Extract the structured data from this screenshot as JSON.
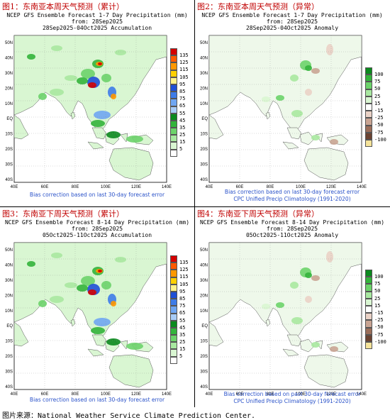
{
  "panels": [
    {
      "label": "图1：东南亚本周天气预测（累计）",
      "header": [
        "NCEP GFS Ensemble Forecast 1-7 Day Precipitation (mm)",
        "from: 28Sep2025",
        "28Sep2025-04Oct2025 Accumulation"
      ],
      "footer": [
        "Bias correction based on last 30-day forecast error"
      ],
      "kind": "accum"
    },
    {
      "label": "图2：东南亚本周天气预测（异常）",
      "header": [
        "NCEP GFS Ensemble Forecast 1-7 Day Precipitation (mm)",
        "from: 28Sep2025",
        "28Sep2025-04Oct2025 Anomaly"
      ],
      "footer": [
        "Bias correction based on last 30-day forecast error",
        "CPC Unified Precip Climatology (1991-2020)"
      ],
      "kind": "anom"
    },
    {
      "label": "图3：东南亚下周天气预测（累计）",
      "header": [
        "NCEP GFS Ensemble Forecast 8-14 Day Precipitation (mm)",
        "from: 28Sep2025",
        "05Oct2025-11Oct2025 Accumulation"
      ],
      "footer": [
        "Bias correction based on last 30-day forecast error"
      ],
      "kind": "accum"
    },
    {
      "label": "图4：东南亚下周天气预测（异常）",
      "header": [
        "NCEP GFS Ensemble Forecast 8-14 Day Precipitation (mm)",
        "from: 28Sep2025",
        "05Oct2025-11Oct2025 Anomaly"
      ],
      "footer": [
        "Bias correction based on past 30-day forecast error",
        "CPC Unified Precip Climatology (1991-2020)"
      ],
      "kind": "anom"
    }
  ],
  "map_axes": {
    "lon_labels": [
      "40E",
      "60E",
      "80E",
      "100E",
      "120E",
      "140E"
    ],
    "lat_labels_accum": [
      "50N",
      "40N",
      "30N",
      "20N",
      "10N",
      "EQ",
      "10S",
      "20S",
      "30S",
      "40S"
    ],
    "lat_labels_anom": [
      "50N",
      "40N",
      "30N",
      "20N",
      "10N",
      "EQ",
      "10S",
      "20S",
      "30S",
      "40S"
    ]
  },
  "legend_accum": {
    "labels": [
      "135",
      "125",
      "115",
      "105",
      "95",
      "85",
      "75",
      "65",
      "55",
      "45",
      "35",
      "25",
      "15",
      "5"
    ],
    "colors": [
      "#d40000",
      "#ff5a00",
      "#ff9800",
      "#ffd000",
      "#fff28a",
      "#1f4fd6",
      "#3e7ce8",
      "#6fa6f2",
      "#a8ccf7",
      "#0b8a1e",
      "#33b43b",
      "#6cd36a",
      "#a8e8a0",
      "#d9f6d2",
      "#ffffff"
    ]
  },
  "legend_anom": {
    "labels": [
      "100",
      "75",
      "50",
      "25",
      "15",
      "-15",
      "-25",
      "-50",
      "-75",
      "-100"
    ],
    "colors": [
      "#0b8a1e",
      "#33b43b",
      "#6cd36a",
      "#a8e8a0",
      "#d9f6d2",
      "#ffffff",
      "#ead2c6",
      "#c9a493",
      "#9b6e5a",
      "#6b4332",
      "#f5e39a"
    ]
  },
  "source": "图片来源：National Weather Service Climate Prediction Center."
}
